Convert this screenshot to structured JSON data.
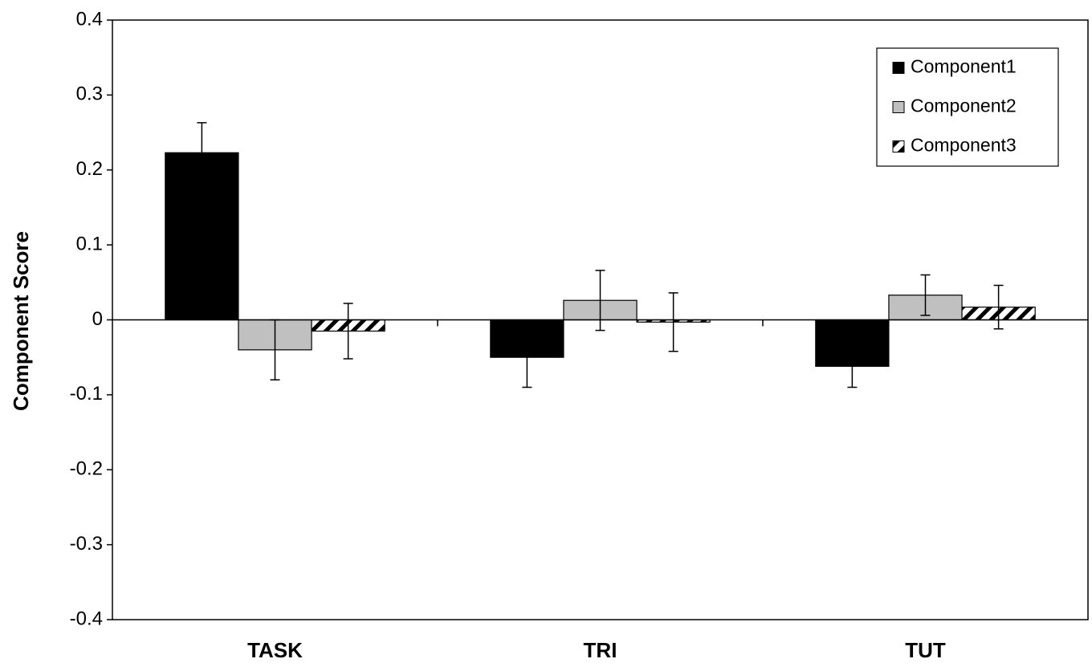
{
  "chart_data": {
    "type": "bar",
    "y_label": "Component Score",
    "categories": [
      "TASK",
      "TRI",
      "TUT"
    ],
    "series": [
      {
        "name": "Component1",
        "color": "#000000",
        "values": [
          0.223,
          -0.05,
          -0.062
        ],
        "errors": [
          0.04,
          0.04,
          0.028
        ]
      },
      {
        "name": "Component2",
        "color": "#c0c0c0",
        "values": [
          -0.04,
          0.026,
          0.033
        ],
        "errors": [
          0.04,
          0.04,
          0.027
        ]
      },
      {
        "name": "Component3",
        "color": "#ffffff",
        "hatch": true,
        "values": [
          -0.015,
          -0.003,
          0.017
        ],
        "errors": [
          0.037,
          0.039,
          0.029
        ]
      }
    ],
    "ylim": [
      -0.4,
      0.4
    ],
    "yticks": [
      -0.4,
      -0.3,
      -0.2,
      -0.1,
      0,
      0.1,
      0.2,
      0.3,
      0.4
    ],
    "legend": "top-right"
  }
}
